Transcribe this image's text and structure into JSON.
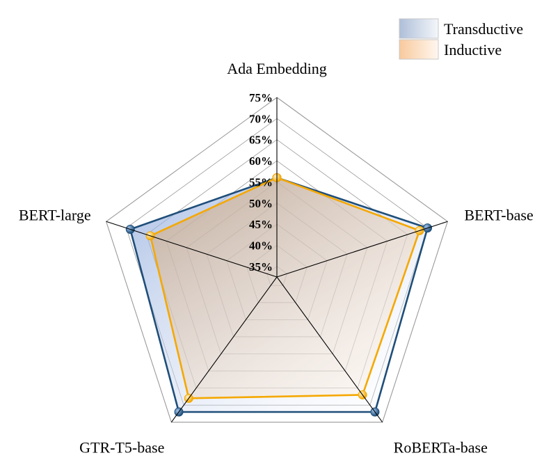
{
  "chart_data": {
    "type": "radar",
    "title": "",
    "axes": [
      "Ada Embedding",
      "BERT-base",
      "RoBERTa-base",
      "GTR-T5-base",
      "BERT-large"
    ],
    "rlim": [
      32.5,
      75
    ],
    "ticks": [
      35,
      40,
      45,
      50,
      55,
      60,
      65,
      70,
      75
    ],
    "tick_labels": [
      "35%",
      "40%",
      "45%",
      "50%",
      "55%",
      "60%",
      "65%",
      "70%",
      "75%"
    ],
    "grid": true,
    "legend_position": "top-right",
    "series": [
      {
        "name": "Transductive",
        "values": [
          56,
          70,
          72,
          72,
          69
        ],
        "color": "#1f4e79",
        "fill": "#8faadc",
        "marker": "#1f4e79"
      },
      {
        "name": "Inductive",
        "values": [
          56,
          68,
          67,
          68,
          64
        ],
        "color": "#f5a800",
        "fill": "#f4b183",
        "marker": "#f5a800"
      }
    ]
  }
}
